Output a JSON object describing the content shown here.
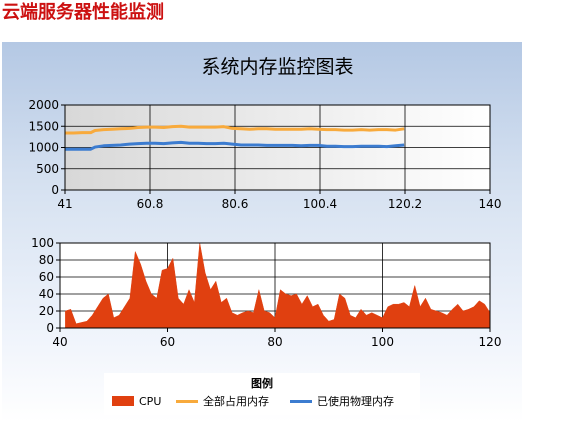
{
  "page": {
    "title": "云端服务器性能监测"
  },
  "colors": {
    "cpu": "#e04010",
    "total_memory": "#f8aa3c",
    "used_memory": "#3c7cd0"
  },
  "legend": {
    "title": "图例",
    "items": [
      {
        "label": "CPU",
        "color": "#e04010",
        "style": "area"
      },
      {
        "label": "全部占用内存",
        "color": "#f8aa3c",
        "style": "line"
      },
      {
        "label": "已使用物理内存",
        "color": "#3c7cd0",
        "style": "line"
      }
    ]
  },
  "chart_data": [
    {
      "type": "line",
      "title": "系统内存监控图表",
      "xlim": [
        41,
        140
      ],
      "ylim": [
        0,
        2000
      ],
      "x_ticks": [
        "41",
        "60.8",
        "80.6",
        "100.4",
        "120.2",
        "140"
      ],
      "y_ticks": [
        "0",
        "500",
        "1000",
        "1500",
        "2000"
      ],
      "grid": true,
      "series": [
        {
          "name": "全部占用内存",
          "color": "#f8aa3c",
          "x": [
            41,
            43,
            45,
            47,
            48,
            50,
            52,
            54,
            56,
            58,
            60,
            62,
            64,
            66,
            68,
            70,
            72,
            74,
            76,
            78,
            80,
            82,
            84,
            86,
            88,
            90,
            92,
            94,
            96,
            98,
            100,
            102,
            104,
            106,
            108,
            110,
            112,
            114,
            116,
            118,
            120
          ],
          "y": [
            1340,
            1340,
            1350,
            1350,
            1400,
            1420,
            1430,
            1440,
            1450,
            1470,
            1480,
            1480,
            1470,
            1490,
            1500,
            1480,
            1480,
            1480,
            1480,
            1490,
            1450,
            1440,
            1430,
            1440,
            1440,
            1430,
            1430,
            1430,
            1430,
            1440,
            1430,
            1420,
            1420,
            1410,
            1410,
            1420,
            1410,
            1420,
            1420,
            1410,
            1440
          ]
        },
        {
          "name": "已使用物理内存",
          "color": "#3c7cd0",
          "x": [
            41,
            43,
            45,
            47,
            48,
            50,
            52,
            54,
            56,
            58,
            60,
            62,
            64,
            66,
            68,
            70,
            72,
            74,
            76,
            78,
            80,
            82,
            84,
            86,
            88,
            90,
            92,
            94,
            96,
            98,
            100,
            102,
            104,
            106,
            108,
            110,
            112,
            114,
            116,
            118,
            120
          ],
          "y": [
            960,
            960,
            960,
            960,
            1010,
            1040,
            1050,
            1060,
            1080,
            1090,
            1100,
            1100,
            1090,
            1110,
            1120,
            1100,
            1100,
            1090,
            1090,
            1100,
            1080,
            1060,
            1060,
            1060,
            1050,
            1050,
            1050,
            1050,
            1040,
            1050,
            1050,
            1030,
            1030,
            1020,
            1020,
            1030,
            1030,
            1030,
            1020,
            1040,
            1060
          ]
        }
      ]
    },
    {
      "type": "area",
      "title": "",
      "xlim": [
        40,
        120
      ],
      "ylim": [
        0,
        100
      ],
      "x_ticks": [
        "40",
        "60",
        "80",
        "100",
        "120"
      ],
      "y_ticks": [
        "0",
        "10",
        "20",
        "30",
        "40",
        "50",
        "60",
        "70",
        "80",
        "90",
        "100"
      ],
      "grid": true,
      "series": [
        {
          "name": "CPU",
          "color": "#e04010",
          "x": [
            41,
            42,
            43,
            45,
            46,
            47,
            48,
            49,
            50,
            51,
            52,
            53,
            54,
            55,
            56,
            57,
            58,
            59,
            60,
            61,
            62,
            63,
            64,
            65,
            66,
            67,
            68,
            69,
            70,
            71,
            72,
            73,
            74,
            75,
            76,
            77,
            78,
            79,
            80,
            81,
            82,
            83,
            84,
            85,
            86,
            87,
            88,
            89,
            90,
            91,
            92,
            93,
            94,
            95,
            96,
            97,
            98,
            99,
            100,
            101,
            102,
            103,
            104,
            105,
            106,
            107,
            108,
            109,
            110,
            111,
            112,
            113,
            114,
            115,
            116,
            117,
            118,
            119,
            120
          ],
          "y": [
            20,
            22,
            5,
            8,
            15,
            25,
            35,
            40,
            12,
            15,
            25,
            35,
            90,
            75,
            55,
            40,
            35,
            68,
            70,
            82,
            35,
            28,
            45,
            30,
            100,
            65,
            45,
            55,
            30,
            35,
            18,
            15,
            18,
            20,
            18,
            45,
            20,
            18,
            12,
            45,
            40,
            38,
            40,
            28,
            38,
            25,
            28,
            15,
            8,
            10,
            40,
            35,
            15,
            12,
            22,
            15,
            18,
            15,
            12,
            25,
            28,
            28,
            30,
            25,
            50,
            25,
            35,
            22,
            20,
            18,
            15,
            22,
            28,
            20,
            22,
            25,
            32,
            28,
            18
          ]
        }
      ]
    }
  ]
}
